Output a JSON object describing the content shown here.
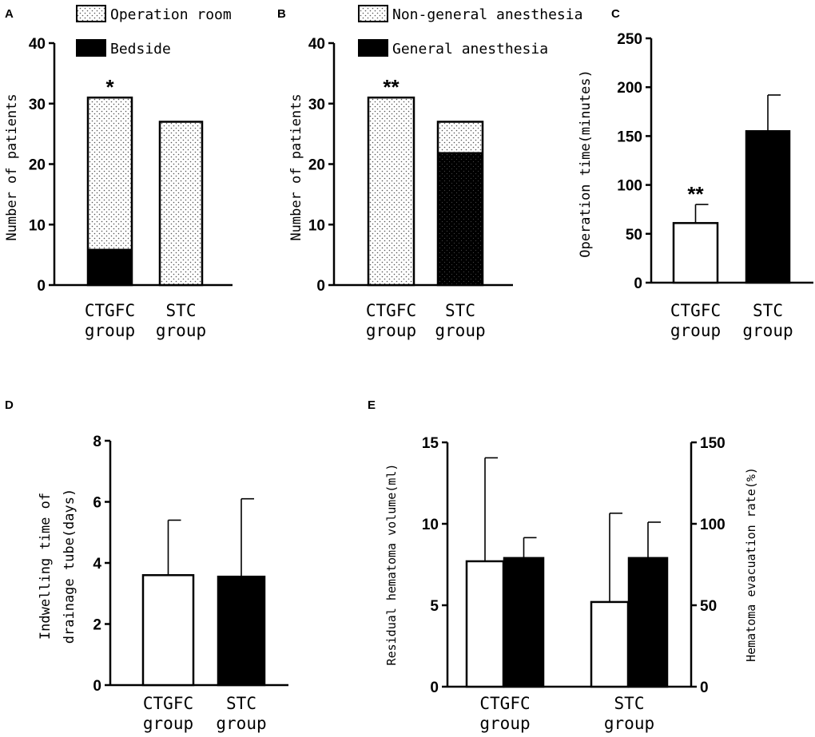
{
  "chart_data": [
    {
      "panel": "A",
      "type": "bar",
      "stacked": true,
      "categories": [
        [
          "CTGFC",
          "group"
        ],
        [
          "STC",
          "group"
        ]
      ],
      "series": [
        {
          "name": "Operation room",
          "values": [
            25,
            27
          ],
          "fill": "dots"
        },
        {
          "name": "Bedside",
          "values": [
            6,
            0
          ],
          "fill": "black"
        }
      ],
      "ylabel": "Number of patients",
      "ylim": [
        0,
        40
      ],
      "yticks": [
        0,
        10,
        20,
        30,
        40
      ],
      "significance": [
        "*",
        ""
      ]
    },
    {
      "panel": "B",
      "type": "bar",
      "stacked": true,
      "categories": [
        [
          "CTGFC",
          "group"
        ],
        [
          "STC",
          "group"
        ]
      ],
      "series": [
        {
          "name": "General anesthesia",
          "values": [
            0,
            22
          ],
          "fill": "black"
        },
        {
          "name": "Non-general anesthesia",
          "values": [
            31,
            5
          ],
          "fill": "dots"
        }
      ],
      "legend_order": [
        "Non-general anesthesia",
        "General anesthesia"
      ],
      "ylabel": "Number of patients",
      "ylim": [
        0,
        40
      ],
      "yticks": [
        0,
        10,
        20,
        30,
        40
      ],
      "significance": [
        "**",
        ""
      ]
    },
    {
      "panel": "C",
      "type": "bar",
      "categories": [
        [
          "CTGFC",
          "group"
        ],
        [
          "STC",
          "group"
        ]
      ],
      "values": [
        61,
        155
      ],
      "errors": [
        19,
        37
      ],
      "fills": [
        "white",
        "black"
      ],
      "ylabel": "Operation time(minutes)",
      "ylim": [
        0,
        250
      ],
      "yticks": [
        0,
        50,
        100,
        150,
        200,
        250
      ],
      "significance": [
        "**",
        ""
      ]
    },
    {
      "panel": "D",
      "type": "bar",
      "categories": [
        [
          "CTGFC",
          "group"
        ],
        [
          "STC",
          "group"
        ]
      ],
      "values": [
        3.6,
        3.55
      ],
      "errors": [
        1.8,
        2.55
      ],
      "fills": [
        "white",
        "black"
      ],
      "ylabel": [
        "Indwelling time of",
        "drainage tube(days)"
      ],
      "ylim": [
        0,
        8
      ],
      "yticks": [
        0,
        2,
        4,
        6,
        8
      ]
    },
    {
      "panel": "E",
      "type": "bar",
      "dual_axis": true,
      "categories": [
        [
          "CTGFC",
          "group"
        ],
        [
          "STC",
          "group"
        ]
      ],
      "series": [
        {
          "name": "Residual hematoma volume",
          "axis": "left",
          "values": [
            7.7,
            5.2
          ],
          "errors": [
            6.35,
            5.45
          ],
          "fill": "white"
        },
        {
          "name": "Hematoma evacuation rate",
          "axis": "right",
          "values": [
            79,
            79
          ],
          "errors": [
            12.5,
            22
          ],
          "fill": "black"
        }
      ],
      "ylabel": "Residual hematoma volume(ml)",
      "ylim": [
        0,
        15
      ],
      "yticks": [
        0,
        5,
        10,
        15
      ],
      "y2label": "Hematoma evacuation rate(%)",
      "y2lim": [
        0,
        150
      ],
      "y2ticks": [
        0,
        50,
        100,
        150
      ]
    }
  ]
}
